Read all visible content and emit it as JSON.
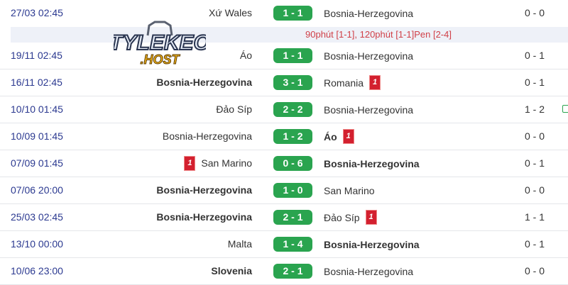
{
  "colors": {
    "date": "#2b3990",
    "score_bg": "#2aa44f",
    "red_card": "#d3202f",
    "pen_note": "#d04048"
  },
  "watermark": {
    "text": "TYLEKEO",
    "sub": ".HOST"
  },
  "matches": [
    {
      "date": "27/03 02:45",
      "home": "Xứ Wales",
      "home_bold": false,
      "score": "1 - 1",
      "away": "Bosnia-Herzegovina",
      "away_bold": false,
      "ht": "0 - 0",
      "note": "90phút [1-1], 120phút [1-1]Pen [2-4]"
    },
    {
      "date": "19/11 02:45",
      "home": "Áo",
      "score": "1 - 1",
      "away": "Bosnia-Herzegovina",
      "ht": "0 - 1"
    },
    {
      "date": "16/11 02:45",
      "home": "Bosnia-Herzegovina",
      "home_bold": true,
      "score": "3 - 1",
      "away": "Romania",
      "away_card": "1",
      "ht": "0 - 1"
    },
    {
      "date": "10/10 01:45",
      "home": "Đảo Síp",
      "score": "2 - 2",
      "away": "Bosnia-Herzegovina",
      "ht": "1 - 2",
      "comment_icon": "comment-icon"
    },
    {
      "date": "10/09 01:45",
      "home": "Bosnia-Herzegovina",
      "score": "1 - 2",
      "away": "Áo",
      "away_bold": true,
      "away_card": "1",
      "ht": "0 - 0"
    },
    {
      "date": "07/09 01:45",
      "home": "San Marino",
      "home_card": "1",
      "score": "0 - 6",
      "away": "Bosnia-Herzegovina",
      "away_bold": true,
      "ht": "0 - 1"
    },
    {
      "date": "07/06 20:00",
      "home": "Bosnia-Herzegovina",
      "home_bold": true,
      "score": "1 - 0",
      "away": "San Marino",
      "ht": "0 - 0"
    },
    {
      "date": "25/03 02:45",
      "home": "Bosnia-Herzegovina",
      "home_bold": true,
      "score": "2 - 1",
      "away": "Đảo Síp",
      "away_card": "1",
      "ht": "1 - 1"
    },
    {
      "date": "13/10 00:00",
      "home": "Malta",
      "score": "1 - 4",
      "away": "Bosnia-Herzegovina",
      "away_bold": true,
      "ht": "0 - 1"
    },
    {
      "date": "10/06 23:00",
      "home": "Slovenia",
      "home_bold": true,
      "score": "2 - 1",
      "away": "Bosnia-Herzegovina",
      "ht": "0 - 0"
    }
  ]
}
